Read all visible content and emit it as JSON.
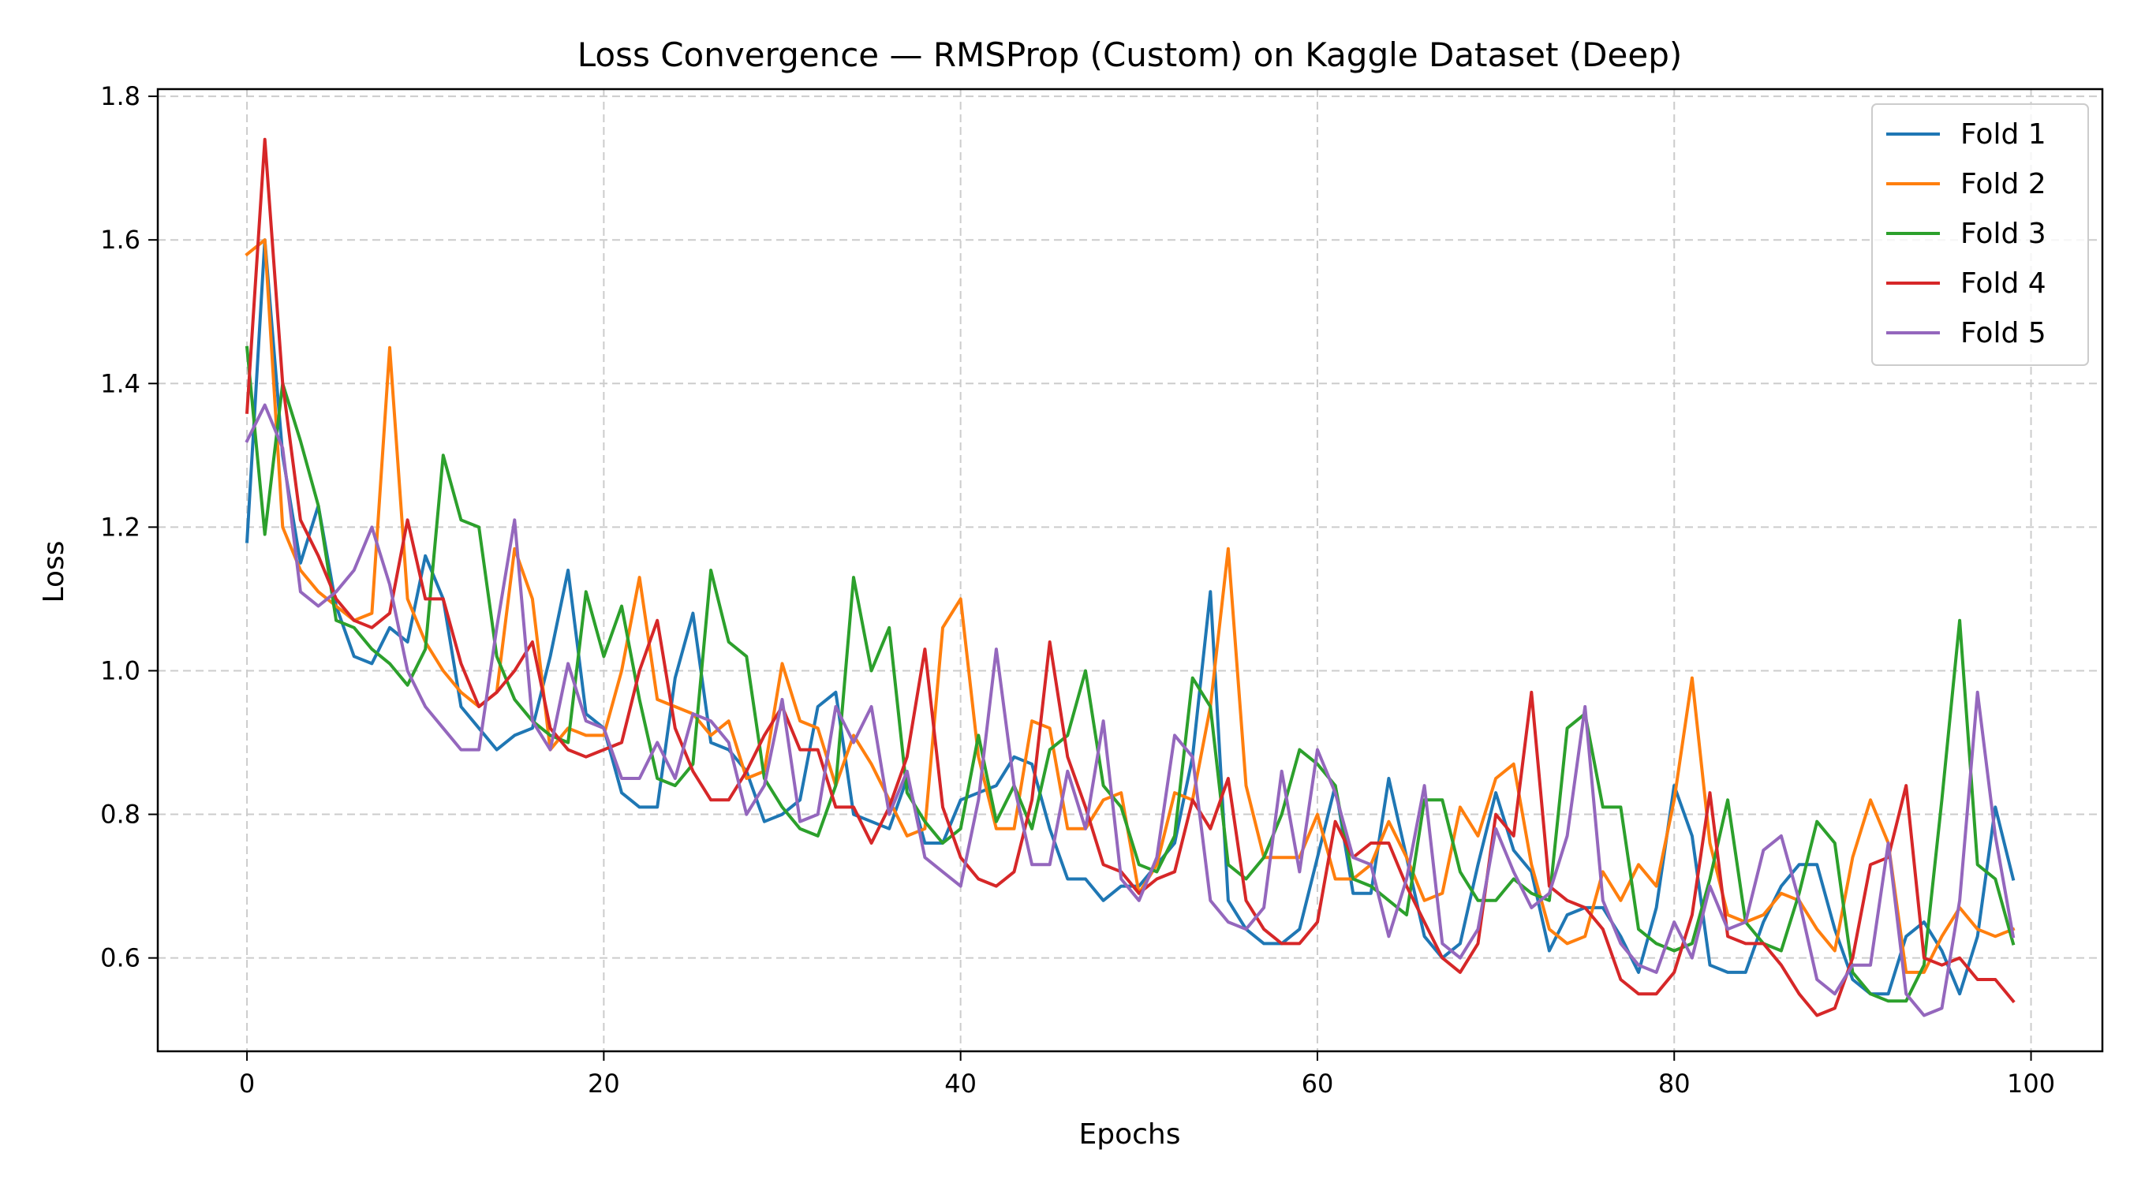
{
  "chart_data": {
    "type": "line",
    "title": "Loss Convergence — RMSProp (Custom) on Kaggle Dataset (Deep)",
    "xlabel": "Epochs",
    "ylabel": "Loss",
    "xlim": [
      -5,
      104
    ],
    "ylim": [
      0.47,
      1.81
    ],
    "xticks": [
      0,
      20,
      40,
      60,
      80,
      100
    ],
    "yticks": [
      0.6,
      0.8,
      1.0,
      1.2,
      1.4,
      1.6,
      1.8
    ],
    "xtick_labels": [
      "0",
      "20",
      "40",
      "60",
      "80",
      "100"
    ],
    "ytick_labels": [
      "0.6",
      "0.8",
      "1.0",
      "1.2",
      "1.4",
      "1.6",
      "1.8"
    ],
    "grid": true,
    "legend_position": "top-right",
    "x_start": 0,
    "series": [
      {
        "name": "Fold 1",
        "color": "#1f77b4",
        "values": [
          1.18,
          1.6,
          1.3,
          1.15,
          1.23,
          1.09,
          1.02,
          1.01,
          1.06,
          1.04,
          1.16,
          1.1,
          0.95,
          0.92,
          0.89,
          0.91,
          0.92,
          1.02,
          1.14,
          0.94,
          0.92,
          0.83,
          0.81,
          0.81,
          0.99,
          1.08,
          0.9,
          0.89,
          0.86,
          0.79,
          0.8,
          0.82,
          0.95,
          0.97,
          0.8,
          0.79,
          0.78,
          0.85,
          0.76,
          0.76,
          0.82,
          0.83,
          0.84,
          0.88,
          0.87,
          0.78,
          0.71,
          0.71,
          0.68,
          0.7,
          0.7,
          0.73,
          0.76,
          0.88,
          1.11,
          0.68,
          0.64,
          0.62,
          0.62,
          0.64,
          0.74,
          0.84,
          0.69,
          0.69,
          0.85,
          0.74,
          0.63,
          0.6,
          0.62,
          0.73,
          0.83,
          0.75,
          0.72,
          0.61,
          0.66,
          0.67,
          0.67,
          0.63,
          0.58,
          0.67,
          0.84,
          0.77,
          0.59,
          0.58,
          0.58,
          0.65,
          0.7,
          0.73,
          0.73,
          0.64,
          0.57,
          0.55,
          0.55,
          0.63,
          0.65,
          0.61,
          0.55,
          0.63,
          0.81,
          0.71
        ]
      },
      {
        "name": "Fold 2",
        "color": "#ff7f0e",
        "values": [
          1.58,
          1.6,
          1.2,
          1.14,
          1.11,
          1.09,
          1.07,
          1.08,
          1.45,
          1.1,
          1.04,
          1.0,
          0.97,
          0.95,
          0.97,
          1.17,
          1.1,
          0.89,
          0.92,
          0.91,
          0.91,
          1.0,
          1.13,
          0.96,
          0.95,
          0.94,
          0.91,
          0.93,
          0.85,
          0.86,
          1.01,
          0.93,
          0.92,
          0.84,
          0.91,
          0.87,
          0.82,
          0.77,
          0.78,
          1.06,
          1.1,
          0.88,
          0.78,
          0.78,
          0.93,
          0.92,
          0.78,
          0.78,
          0.82,
          0.83,
          0.69,
          0.73,
          0.83,
          0.82,
          0.95,
          1.17,
          0.84,
          0.74,
          0.74,
          0.74,
          0.8,
          0.71,
          0.71,
          0.73,
          0.79,
          0.74,
          0.68,
          0.69,
          0.81,
          0.77,
          0.85,
          0.87,
          0.73,
          0.64,
          0.62,
          0.63,
          0.72,
          0.68,
          0.73,
          0.7,
          0.82,
          0.99,
          0.76,
          0.66,
          0.65,
          0.66,
          0.69,
          0.68,
          0.64,
          0.61,
          0.74,
          0.82,
          0.76,
          0.58,
          0.58,
          0.63,
          0.67,
          0.64,
          0.63,
          0.64
        ]
      },
      {
        "name": "Fold 3",
        "color": "#2ca02c",
        "values": [
          1.45,
          1.19,
          1.4,
          1.32,
          1.23,
          1.07,
          1.06,
          1.03,
          1.01,
          0.98,
          1.03,
          1.3,
          1.21,
          1.2,
          1.02,
          0.96,
          0.93,
          0.91,
          0.9,
          1.11,
          1.02,
          1.09,
          0.96,
          0.85,
          0.84,
          0.87,
          1.14,
          1.04,
          1.02,
          0.85,
          0.81,
          0.78,
          0.77,
          0.84,
          1.13,
          1.0,
          1.06,
          0.83,
          0.79,
          0.76,
          0.78,
          0.91,
          0.79,
          0.84,
          0.78,
          0.89,
          0.91,
          1.0,
          0.84,
          0.81,
          0.73,
          0.72,
          0.77,
          0.99,
          0.95,
          0.73,
          0.71,
          0.74,
          0.8,
          0.89,
          0.87,
          0.84,
          0.71,
          0.7,
          0.68,
          0.66,
          0.82,
          0.82,
          0.72,
          0.68,
          0.68,
          0.71,
          0.69,
          0.68,
          0.92,
          0.94,
          0.81,
          0.81,
          0.64,
          0.62,
          0.61,
          0.62,
          0.71,
          0.82,
          0.65,
          0.62,
          0.61,
          0.69,
          0.79,
          0.76,
          0.58,
          0.55,
          0.54,
          0.54,
          0.59,
          0.82,
          1.07,
          0.73,
          0.71,
          0.62
        ]
      },
      {
        "name": "Fold 4",
        "color": "#d62728",
        "values": [
          1.36,
          1.74,
          1.4,
          1.21,
          1.16,
          1.1,
          1.07,
          1.06,
          1.08,
          1.21,
          1.1,
          1.1,
          1.01,
          0.95,
          0.97,
          1.0,
          1.04,
          0.92,
          0.89,
          0.88,
          0.89,
          0.9,
          1.0,
          1.07,
          0.92,
          0.86,
          0.82,
          0.82,
          0.86,
          0.91,
          0.95,
          0.89,
          0.89,
          0.81,
          0.81,
          0.76,
          0.81,
          0.88,
          1.03,
          0.81,
          0.74,
          0.71,
          0.7,
          0.72,
          0.82,
          1.04,
          0.88,
          0.81,
          0.73,
          0.72,
          0.69,
          0.71,
          0.72,
          0.82,
          0.78,
          0.85,
          0.68,
          0.64,
          0.62,
          0.62,
          0.65,
          0.79,
          0.74,
          0.76,
          0.76,
          0.7,
          0.65,
          0.6,
          0.58,
          0.62,
          0.8,
          0.77,
          0.97,
          0.7,
          0.68,
          0.67,
          0.64,
          0.57,
          0.55,
          0.55,
          0.58,
          0.66,
          0.83,
          0.63,
          0.62,
          0.62,
          0.59,
          0.55,
          0.52,
          0.53,
          0.6,
          0.73,
          0.74,
          0.84,
          0.6,
          0.59,
          0.6,
          0.57,
          0.57,
          0.54
        ]
      },
      {
        "name": "Fold 5",
        "color": "#9467bd",
        "values": [
          1.32,
          1.37,
          1.31,
          1.11,
          1.09,
          1.11,
          1.14,
          1.2,
          1.12,
          1.0,
          0.95,
          0.92,
          0.89,
          0.89,
          1.06,
          1.21,
          0.93,
          0.89,
          1.01,
          0.93,
          0.92,
          0.85,
          0.85,
          0.9,
          0.85,
          0.94,
          0.93,
          0.9,
          0.8,
          0.84,
          0.96,
          0.79,
          0.8,
          0.95,
          0.9,
          0.95,
          0.8,
          0.86,
          0.74,
          0.72,
          0.7,
          0.82,
          1.03,
          0.84,
          0.73,
          0.73,
          0.86,
          0.78,
          0.93,
          0.71,
          0.68,
          0.74,
          0.91,
          0.88,
          0.68,
          0.65,
          0.64,
          0.67,
          0.86,
          0.72,
          0.89,
          0.83,
          0.74,
          0.73,
          0.63,
          0.71,
          0.84,
          0.62,
          0.6,
          0.64,
          0.78,
          0.72,
          0.67,
          0.69,
          0.77,
          0.95,
          0.68,
          0.62,
          0.59,
          0.58,
          0.65,
          0.6,
          0.7,
          0.64,
          0.65,
          0.75,
          0.77,
          0.68,
          0.57,
          0.55,
          0.59,
          0.59,
          0.76,
          0.55,
          0.52,
          0.53,
          0.68,
          0.97,
          0.77,
          0.63
        ]
      }
    ]
  }
}
